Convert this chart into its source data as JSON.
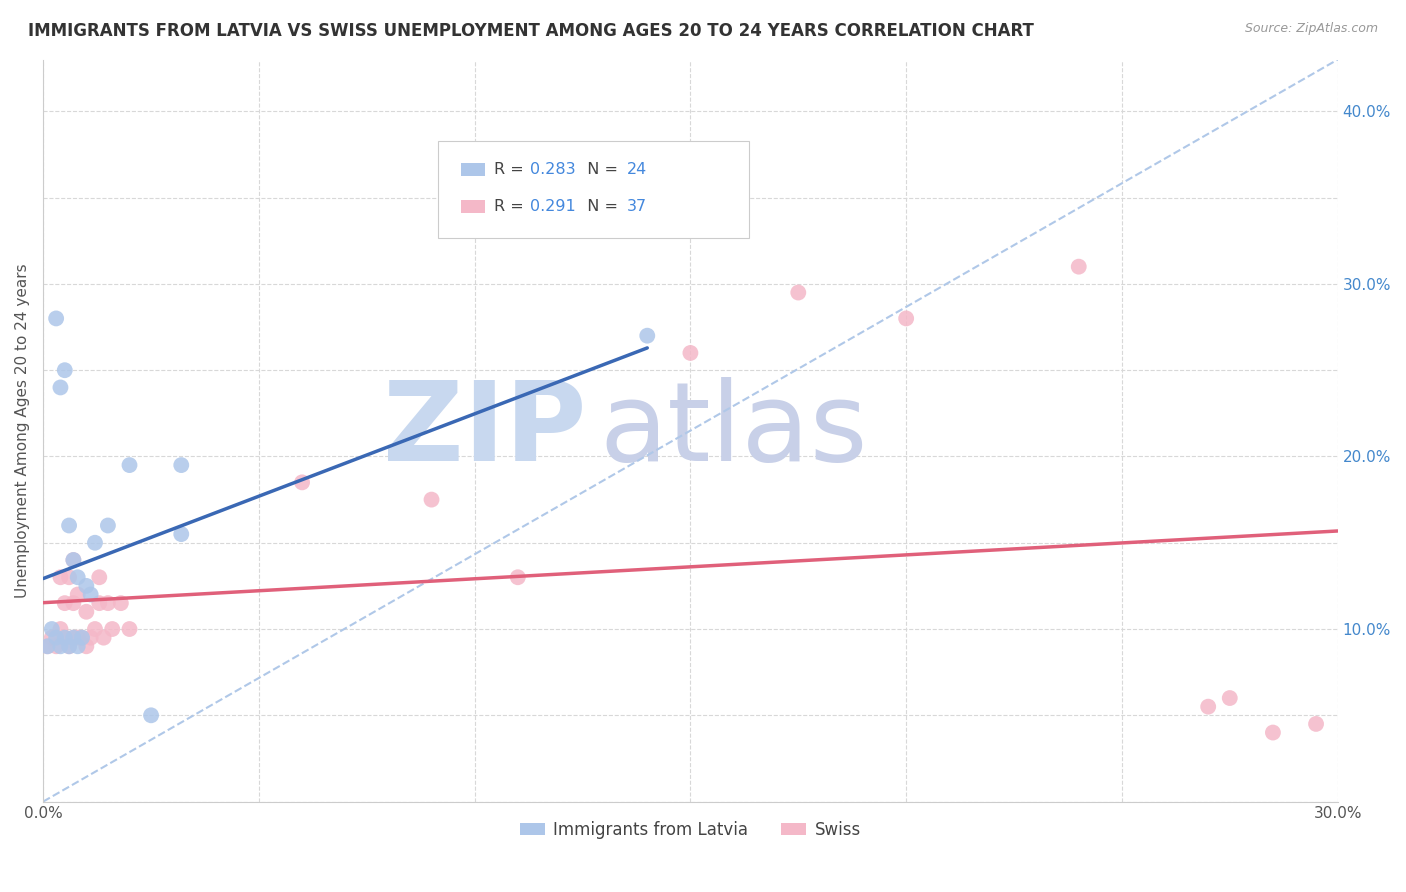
{
  "title": "IMMIGRANTS FROM LATVIA VS SWISS UNEMPLOYMENT AMONG AGES 20 TO 24 YEARS CORRELATION CHART",
  "source": "Source: ZipAtlas.com",
  "ylabel": "Unemployment Among Ages 20 to 24 years",
  "xmin": 0.0,
  "xmax": 0.3,
  "ymin": 0.0,
  "ymax": 0.43,
  "latvia_R": 0.283,
  "latvia_N": 24,
  "swiss_R": 0.291,
  "swiss_N": 37,
  "latvia_color": "#adc6e9",
  "swiss_color": "#f4b8c8",
  "latvia_line_color": "#3a68b4",
  "swiss_line_color": "#e0607a",
  "diag_color": "#b0c8e8",
  "legend_label_latvia": "Immigrants from Latvia",
  "legend_label_swiss": "Swiss",
  "watermark_zip": "ZIP",
  "watermark_atlas": "atlas",
  "watermark_color_zip": "#c8d8ef",
  "watermark_color_atlas": "#c8d0e8",
  "background_color": "#ffffff",
  "r_n_color": "#4488dd",
  "grid_color": "#d8d8d8",
  "latvia_x": [
    0.001,
    0.002,
    0.003,
    0.003,
    0.004,
    0.004,
    0.005,
    0.005,
    0.006,
    0.006,
    0.007,
    0.007,
    0.008,
    0.008,
    0.009,
    0.01,
    0.011,
    0.012,
    0.015,
    0.02,
    0.025,
    0.032,
    0.032,
    0.14
  ],
  "latvia_y": [
    0.09,
    0.1,
    0.095,
    0.28,
    0.09,
    0.24,
    0.095,
    0.25,
    0.09,
    0.16,
    0.095,
    0.14,
    0.09,
    0.13,
    0.095,
    0.125,
    0.12,
    0.15,
    0.16,
    0.195,
    0.05,
    0.195,
    0.155,
    0.27
  ],
  "swiss_x": [
    0.001,
    0.002,
    0.003,
    0.004,
    0.004,
    0.005,
    0.005,
    0.006,
    0.006,
    0.007,
    0.007,
    0.007,
    0.008,
    0.008,
    0.009,
    0.01,
    0.01,
    0.011,
    0.012,
    0.013,
    0.013,
    0.014,
    0.015,
    0.016,
    0.018,
    0.02,
    0.06,
    0.09,
    0.11,
    0.15,
    0.175,
    0.2,
    0.24,
    0.27,
    0.275,
    0.285,
    0.295
  ],
  "swiss_y": [
    0.09,
    0.095,
    0.09,
    0.1,
    0.13,
    0.095,
    0.115,
    0.09,
    0.13,
    0.095,
    0.115,
    0.14,
    0.095,
    0.12,
    0.095,
    0.09,
    0.11,
    0.095,
    0.1,
    0.115,
    0.13,
    0.095,
    0.115,
    0.1,
    0.115,
    0.1,
    0.185,
    0.175,
    0.13,
    0.26,
    0.295,
    0.28,
    0.31,
    0.055,
    0.06,
    0.04,
    0.045
  ]
}
